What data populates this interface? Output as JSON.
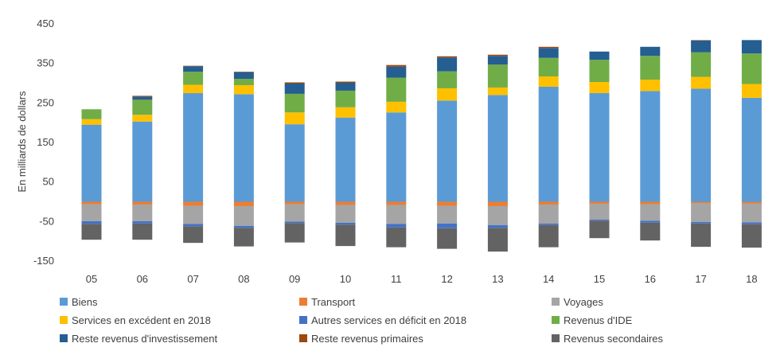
{
  "chart_data": {
    "type": "bar",
    "stacked": true,
    "ylabel": "En milliards de dollars",
    "xlabel": "",
    "ylim": [
      -150,
      450
    ],
    "yticks": [
      450,
      350,
      250,
      150,
      50,
      -50,
      -150
    ],
    "grid": false,
    "legend_position": "bottom",
    "categories": [
      "05",
      "06",
      "07",
      "08",
      "09",
      "10",
      "11",
      "12",
      "13",
      "14",
      "15",
      "16",
      "17",
      "18"
    ],
    "series": [
      {
        "name": "Biens",
        "color": "#5B9BD5",
        "values": [
          195,
          203,
          275,
          272,
          196,
          213,
          226,
          256,
          270,
          291,
          275,
          280,
          286,
          263
        ]
      },
      {
        "name": "Transport",
        "color": "#ED7D31",
        "values": [
          -6,
          -7,
          -10,
          -11,
          -6,
          -8,
          -8,
          -10,
          -11,
          -7,
          -5,
          -6,
          -3,
          -4
        ]
      },
      {
        "name": "Voyages",
        "color": "#A5A5A5",
        "values": [
          -43,
          -42,
          -46,
          -50,
          -44,
          -45,
          -48,
          -45,
          -48,
          -48,
          -40,
          -42,
          -48,
          -48
        ]
      },
      {
        "name": "Services en excédent en 2018",
        "color": "#FFC000",
        "values": [
          14,
          17,
          21,
          23,
          30,
          26,
          27,
          31,
          19,
          26,
          28,
          29,
          30,
          35
        ]
      },
      {
        "name": "Autres services en déficit en 2018",
        "color": "#4472C4",
        "values": [
          -7,
          -6,
          -6,
          -5,
          -4,
          -5,
          -9,
          -12,
          -7,
          -4,
          -3,
          -5,
          -4,
          -5
        ]
      },
      {
        "name": "Revenus d'IDE",
        "color": "#70AD47",
        "values": [
          25,
          38,
          33,
          16,
          47,
          42,
          61,
          43,
          58,
          47,
          56,
          60,
          62,
          77
        ]
      },
      {
        "name": "Reste revenus d'investissement",
        "color": "#255E91",
        "values": [
          0,
          8,
          14,
          17,
          26,
          20,
          28,
          35,
          22,
          25,
          21,
          23,
          30,
          34
        ]
      },
      {
        "name": "Reste revenus primaires",
        "color": "#9E480E",
        "values": [
          0,
          2,
          1,
          1,
          3,
          3,
          4,
          3,
          3,
          3,
          0,
          0,
          1,
          0
        ]
      },
      {
        "name": "Revenus secondaires",
        "color": "#636363",
        "values": [
          -40,
          -41,
          -42,
          -47,
          -49,
          -54,
          -50,
          -52,
          -60,
          -56,
          -44,
          -45,
          -59,
          -59
        ]
      }
    ]
  }
}
